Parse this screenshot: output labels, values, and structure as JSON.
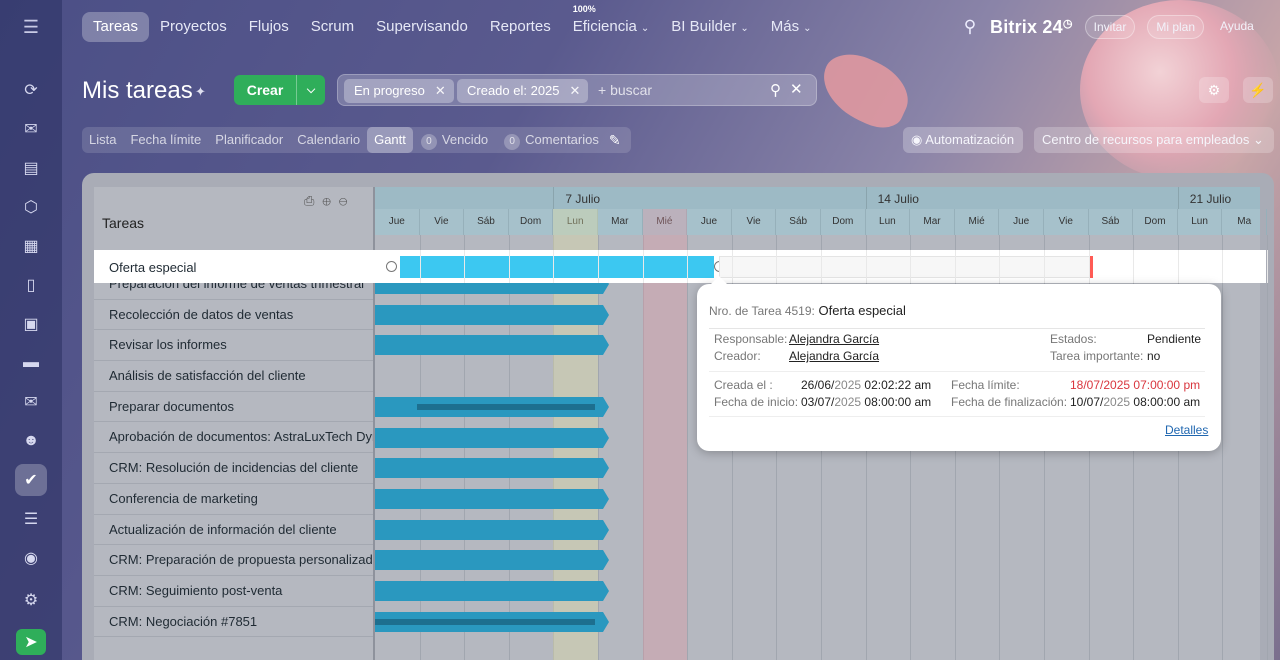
{
  "nav": {
    "tabs": [
      {
        "label": "Tareas",
        "active": true
      },
      {
        "label": "Proyectos"
      },
      {
        "label": "Flujos"
      },
      {
        "label": "Scrum"
      },
      {
        "label": "Supervisando"
      },
      {
        "label": "Reportes"
      },
      {
        "label": "Eficiencia",
        "badge": "100%",
        "dropdown": true
      },
      {
        "label": "BI Builder",
        "dropdown": true
      },
      {
        "label": "Más",
        "dropdown": true
      }
    ],
    "brand": "Bitrix 24",
    "invite": "Invitar",
    "my_plan": "Mi plan",
    "help": "Ayuda"
  },
  "header": {
    "title": "Mis tareas",
    "create": "Crear",
    "filters": [
      "En progreso",
      "Creado el: 2025"
    ],
    "search_placeholder": "+ buscar"
  },
  "views": {
    "tabs": [
      "Lista",
      "Fecha límite",
      "Planificador",
      "Calendario",
      "Gantt"
    ],
    "active": "Gantt",
    "overdue_count": "0",
    "overdue_label": "Vencido",
    "comments_count": "0",
    "comments_label": "Comentarios",
    "automation": "Automatización",
    "resource_center": "Centro de recursos para empleados"
  },
  "gantt": {
    "column_title": "Tareas",
    "weeks": [
      "7 Julio",
      "14 Julio",
      "21 Julio"
    ],
    "days": [
      "Jue",
      "Vie",
      "Sáb",
      "Dom",
      "Lun",
      "Mar",
      "Mié",
      "Jue",
      "Vie",
      "Sáb",
      "Dom",
      "Lun",
      "Mar",
      "Mié",
      "Jue",
      "Vie",
      "Sáb",
      "Dom",
      "Lun",
      "Ma"
    ],
    "selected_task": "Oferta especial",
    "tasks": [
      "Preparación del informe de ventas trimestral",
      "Recolección de datos de ventas",
      "Revisar los informes",
      "Análisis de satisfacción del cliente",
      "Preparar documentos",
      "Aprobación de documentos: AstraLuxTech Dynamics",
      "CRM: Resolución de incidencias del cliente",
      "Conferencia de marketing",
      "Actualización de información del cliente",
      "CRM: Preparación de propuesta personalizada",
      "CRM: Seguimiento post-venta",
      "CRM: Negociación #7851"
    ]
  },
  "tooltip": {
    "task_no_label": "Nro. de Tarea 4519:",
    "task_name": "Oferta especial",
    "responsible_label": "Responsable:",
    "responsible": "Alejandra García",
    "creator_label": "Creador:",
    "creator": "Alejandra García",
    "status_label": "Estados:",
    "status": "Pendiente",
    "important_label": "Tarea importante:",
    "important": "no",
    "created_label": "Creada el :",
    "created_date": "26/06/",
    "created_year": "2025",
    "created_time": " 02:02:22 am",
    "start_label": "Fecha de inicio:",
    "start_date": "03/07/",
    "start_year": "2025",
    "start_time": " 08:00:00 am",
    "deadline_label": "Fecha límite:",
    "deadline": "18/07/2025 07:00:00 pm",
    "end_label": "Fecha de finalización:",
    "end_date": "10/07/",
    "end_year": "2025",
    "end_time": " 08:00:00 am",
    "details": "Detalles"
  }
}
